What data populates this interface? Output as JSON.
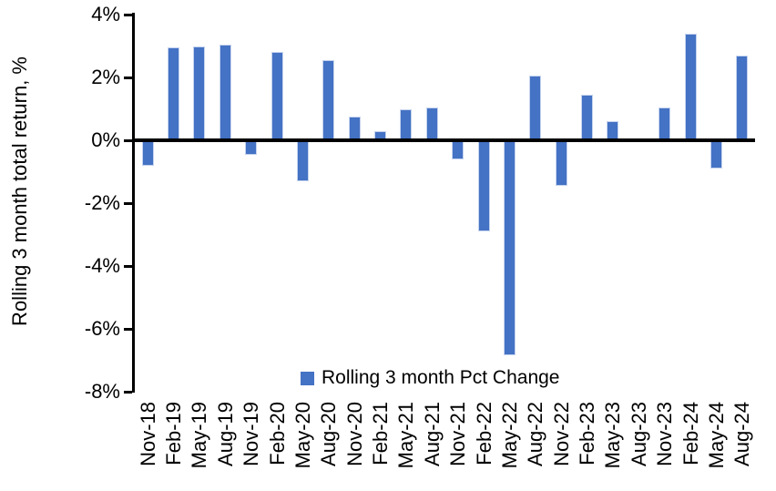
{
  "figure": {
    "background": "#ffffff",
    "axis_color": "#000000",
    "text_color": "#000000"
  },
  "chart_data": {
    "type": "bar",
    "title": "",
    "xlabel": "",
    "ylabel": "Rolling 3 month total return, %",
    "ylim": [
      -8,
      4
    ],
    "grid": "off",
    "bar_color": "#4472C4",
    "bar_edge_color": "#c5d3ee",
    "ytick_values": [
      4,
      2,
      0,
      -2,
      -4,
      -6,
      -8
    ],
    "ytick_labels": [
      "4%",
      "2%",
      "0%",
      "-2%",
      "-4%",
      "-6%",
      "-8%"
    ],
    "categories": [
      "Nov-18",
      "Feb-19",
      "May-19",
      "Aug-19",
      "Nov-19",
      "Feb-20",
      "May-20",
      "Aug-20",
      "Nov-20",
      "Feb-21",
      "May-21",
      "Aug-21",
      "Nov-21",
      "Feb-22",
      "May-22",
      "Aug-22",
      "Nov-22",
      "Feb-23",
      "May-23",
      "Aug-23",
      "Nov-23",
      "Feb-24",
      "May-24",
      "Aug-24"
    ],
    "values": [
      -0.8,
      2.95,
      3.0,
      3.05,
      -0.45,
      2.8,
      -1.3,
      2.55,
      0.75,
      0.3,
      1.0,
      1.05,
      -0.6,
      -2.9,
      -6.85,
      2.05,
      -1.45,
      1.45,
      0.6,
      0.0,
      1.05,
      3.4,
      -0.9,
      2.7
    ],
    "legend": {
      "position": "bottom-center",
      "entries": [
        {
          "label": "Rolling 3 month Pct Change",
          "color": "#4472C4"
        }
      ]
    }
  }
}
